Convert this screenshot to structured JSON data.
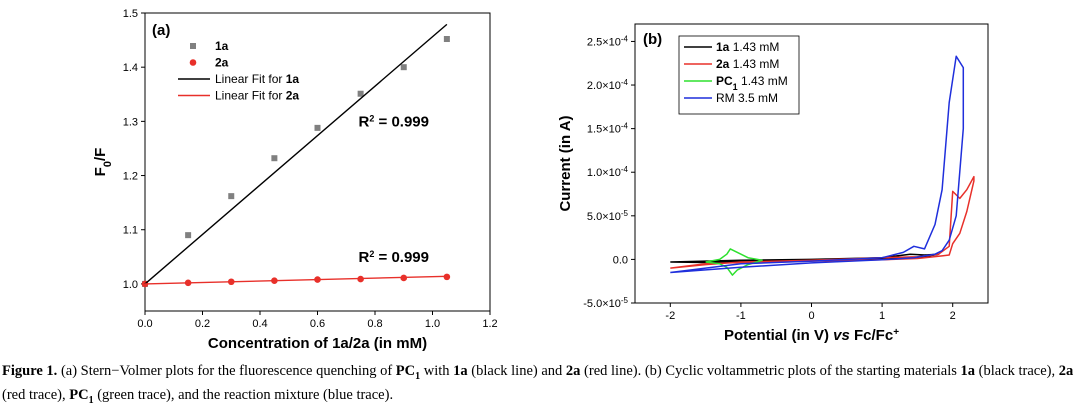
{
  "chart_data": [
    {
      "type": "scatter",
      "panel_label": "(a)",
      "xlabel": "Concentration of 1a/2a (in mM)",
      "ylabel": "F0/F",
      "xlim": [
        0.0,
        1.2
      ],
      "ylim": [
        0.95,
        1.5
      ],
      "xticks": [
        "0.0",
        "0.2",
        "0.4",
        "0.6",
        "0.8",
        "1.0",
        "1.2"
      ],
      "yticks": [
        "1.0",
        "1.1",
        "1.2",
        "1.3",
        "1.4",
        "1.5"
      ],
      "series": [
        {
          "name": "1a",
          "marker": "square",
          "color": "#808080",
          "x": [
            0,
            0.15,
            0.3,
            0.45,
            0.6,
            0.75,
            0.9,
            1.05
          ],
          "y": [
            1.0,
            1.09,
            1.162,
            1.232,
            1.288,
            1.351,
            1.4,
            1.452
          ]
        },
        {
          "name": "2a",
          "marker": "circle",
          "color": "#e8302a",
          "x": [
            0,
            0.15,
            0.3,
            0.45,
            0.6,
            0.75,
            0.9,
            1.05
          ],
          "y": [
            1.0,
            1.002,
            1.004,
            1.006,
            1.008,
            1.009,
            1.011,
            1.013
          ]
        },
        {
          "name": "Linear Fit for 1a",
          "line": true,
          "color": "#000000",
          "x": [
            0,
            1.05
          ],
          "y": [
            1.0,
            1.479
          ]
        },
        {
          "name": "Linear Fit for 2a",
          "line": true,
          "color": "#e8302a",
          "x": [
            0,
            1.05
          ],
          "y": [
            1.0,
            1.014
          ]
        }
      ],
      "annotations": [
        {
          "text": "R",
          "sup": "2",
          "rest": " = 0.999",
          "x": 0.76,
          "y": 1.3
        },
        {
          "text": "R",
          "sup": "2",
          "rest": " = 0.999",
          "x": 0.76,
          "y": 1.05
        }
      ],
      "grid": false,
      "legend": "top-left"
    },
    {
      "type": "line",
      "panel_label": "(b)",
      "xlabel_main": "Potential (in V) ",
      "xlabel_italic": "vs",
      "xlabel_tail": " Fc/Fc",
      "xlabel_sup": "+",
      "ylabel": "Current (in A)",
      "xlim": [
        -2.5,
        2.5
      ],
      "ylim": [
        -5e-05,
        0.00027
      ],
      "xticks": [
        "-2",
        "-1",
        "0",
        "1",
        "2"
      ],
      "yticks": [
        {
          "base": "-5.0×10",
          "exp": "-5",
          "value": -5e-05
        },
        {
          "base": "0.0",
          "exp": "",
          "value": 0
        },
        {
          "base": "5.0×10",
          "exp": "-5",
          "value": 5e-05
        },
        {
          "base": "1.0×10",
          "exp": "-4",
          "value": 0.0001
        },
        {
          "base": "1.5×10",
          "exp": "-4",
          "value": 0.00015
        },
        {
          "base": "2.0×10",
          "exp": "-4",
          "value": 0.0002
        },
        {
          "base": "2.5×10",
          "exp": "-4",
          "value": 0.00025
        }
      ],
      "series": [
        {
          "name_bold": "1a",
          "name_rest": " 1.43 mM",
          "color": "#000000",
          "x": [
            -2.0,
            -1.5,
            -1.0,
            0,
            1.0,
            1.4,
            1.6,
            1.8,
            1.6,
            1.4,
            1.0,
            0,
            -1.0,
            -1.5,
            -2.0
          ],
          "y": [
            -3e-06,
            -2e-06,
            -1e-06,
            0,
            2e-06,
            6e-06,
            5e-06,
            6e-06,
            3e-06,
            2e-06,
            5e-07,
            -1e-06,
            -2.5e-06,
            -3.5e-06,
            -3e-06
          ]
        },
        {
          "name_bold": "2a",
          "name_rest": " 1.43 mM",
          "color": "#e8302a",
          "x": [
            -2.0,
            -1.5,
            -1.0,
            0,
            1.0,
            1.5,
            1.8,
            1.95,
            2.0,
            2.1,
            2.2,
            2.3,
            2.3,
            2.2,
            2.1,
            2.0,
            1.95,
            1.85,
            1.5,
            1.0,
            0,
            -1.0,
            -1.5,
            -2.0
          ],
          "y": [
            -1e-05,
            -6e-06,
            -3e-06,
            -1e-06,
            2e-06,
            3e-06,
            6e-06,
            1.5e-05,
            7.8e-05,
            7e-05,
            8e-05,
            9.5e-05,
            9e-05,
            5.5e-05,
            3e-05,
            1.8e-05,
            5e-06,
            4e-06,
            1e-06,
            -5e-07,
            -2e-06,
            -3.5e-06,
            -5e-06,
            -1e-05
          ]
        },
        {
          "name_bold": "PC",
          "name_sub": "1",
          "name_rest": " 1.43 mM",
          "color": "#2ee02e",
          "x": [
            -1.5,
            -1.3,
            -1.2,
            -1.15,
            -1.05,
            -0.9,
            -0.7,
            -0.9,
            -1.05,
            -1.12,
            -1.2,
            -1.3,
            -1.5
          ],
          "y": [
            -3e-06,
            0,
            6e-06,
            1.2e-05,
            8e-06,
            2e-06,
            -1e-06,
            -6e-06,
            -1.2e-05,
            -1.8e-05,
            -9e-06,
            -5e-06,
            -3e-06
          ]
        },
        {
          "name_bold": "",
          "name_rest": "RM 3.5 mM",
          "color": "#1f2fdc",
          "x": [
            -2.0,
            -1.5,
            -1.0,
            0,
            1.0,
            1.3,
            1.45,
            1.6,
            1.75,
            1.85,
            1.95,
            2.05,
            2.15,
            2.15,
            2.05,
            1.95,
            1.85,
            1.75,
            1.6,
            1.45,
            1.0,
            0,
            -1.0,
            -1.5,
            -2.0
          ],
          "y": [
            -1.5e-05,
            -1e-05,
            -5e-06,
            -2e-06,
            2e-06,
            8e-06,
            1.5e-05,
            1.2e-05,
            4e-05,
            8e-05,
            0.00018,
            0.000233,
            0.00022,
            0.00015,
            5e-05,
            2.2e-05,
            1e-05,
            6e-06,
            4e-06,
            2e-06,
            -5e-07,
            -4e-06,
            -9e-06,
            -1.2e-05,
            -1.5e-05
          ]
        }
      ],
      "grid": false,
      "legend": "top-left"
    }
  ],
  "caption": {
    "fig": "Figure 1.",
    "parts": [
      {
        "t": " (a) Stern−Volmer plots for the fluorescence quenching of "
      },
      {
        "b": "PC",
        "sub": "1"
      },
      {
        "t": " with "
      },
      {
        "b": "1a"
      },
      {
        "t": " (black line) and "
      },
      {
        "b": "2a"
      },
      {
        "t": " (red line). (b) Cyclic voltammetric plots of the starting materials "
      },
      {
        "b": "1a"
      },
      {
        "t": " (black trace), "
      },
      {
        "b": "2a"
      },
      {
        "t": " (red trace), "
      },
      {
        "b": "PC",
        "sub": "1"
      },
      {
        "t": " (green trace), and the reaction mixture (blue trace)."
      }
    ]
  }
}
